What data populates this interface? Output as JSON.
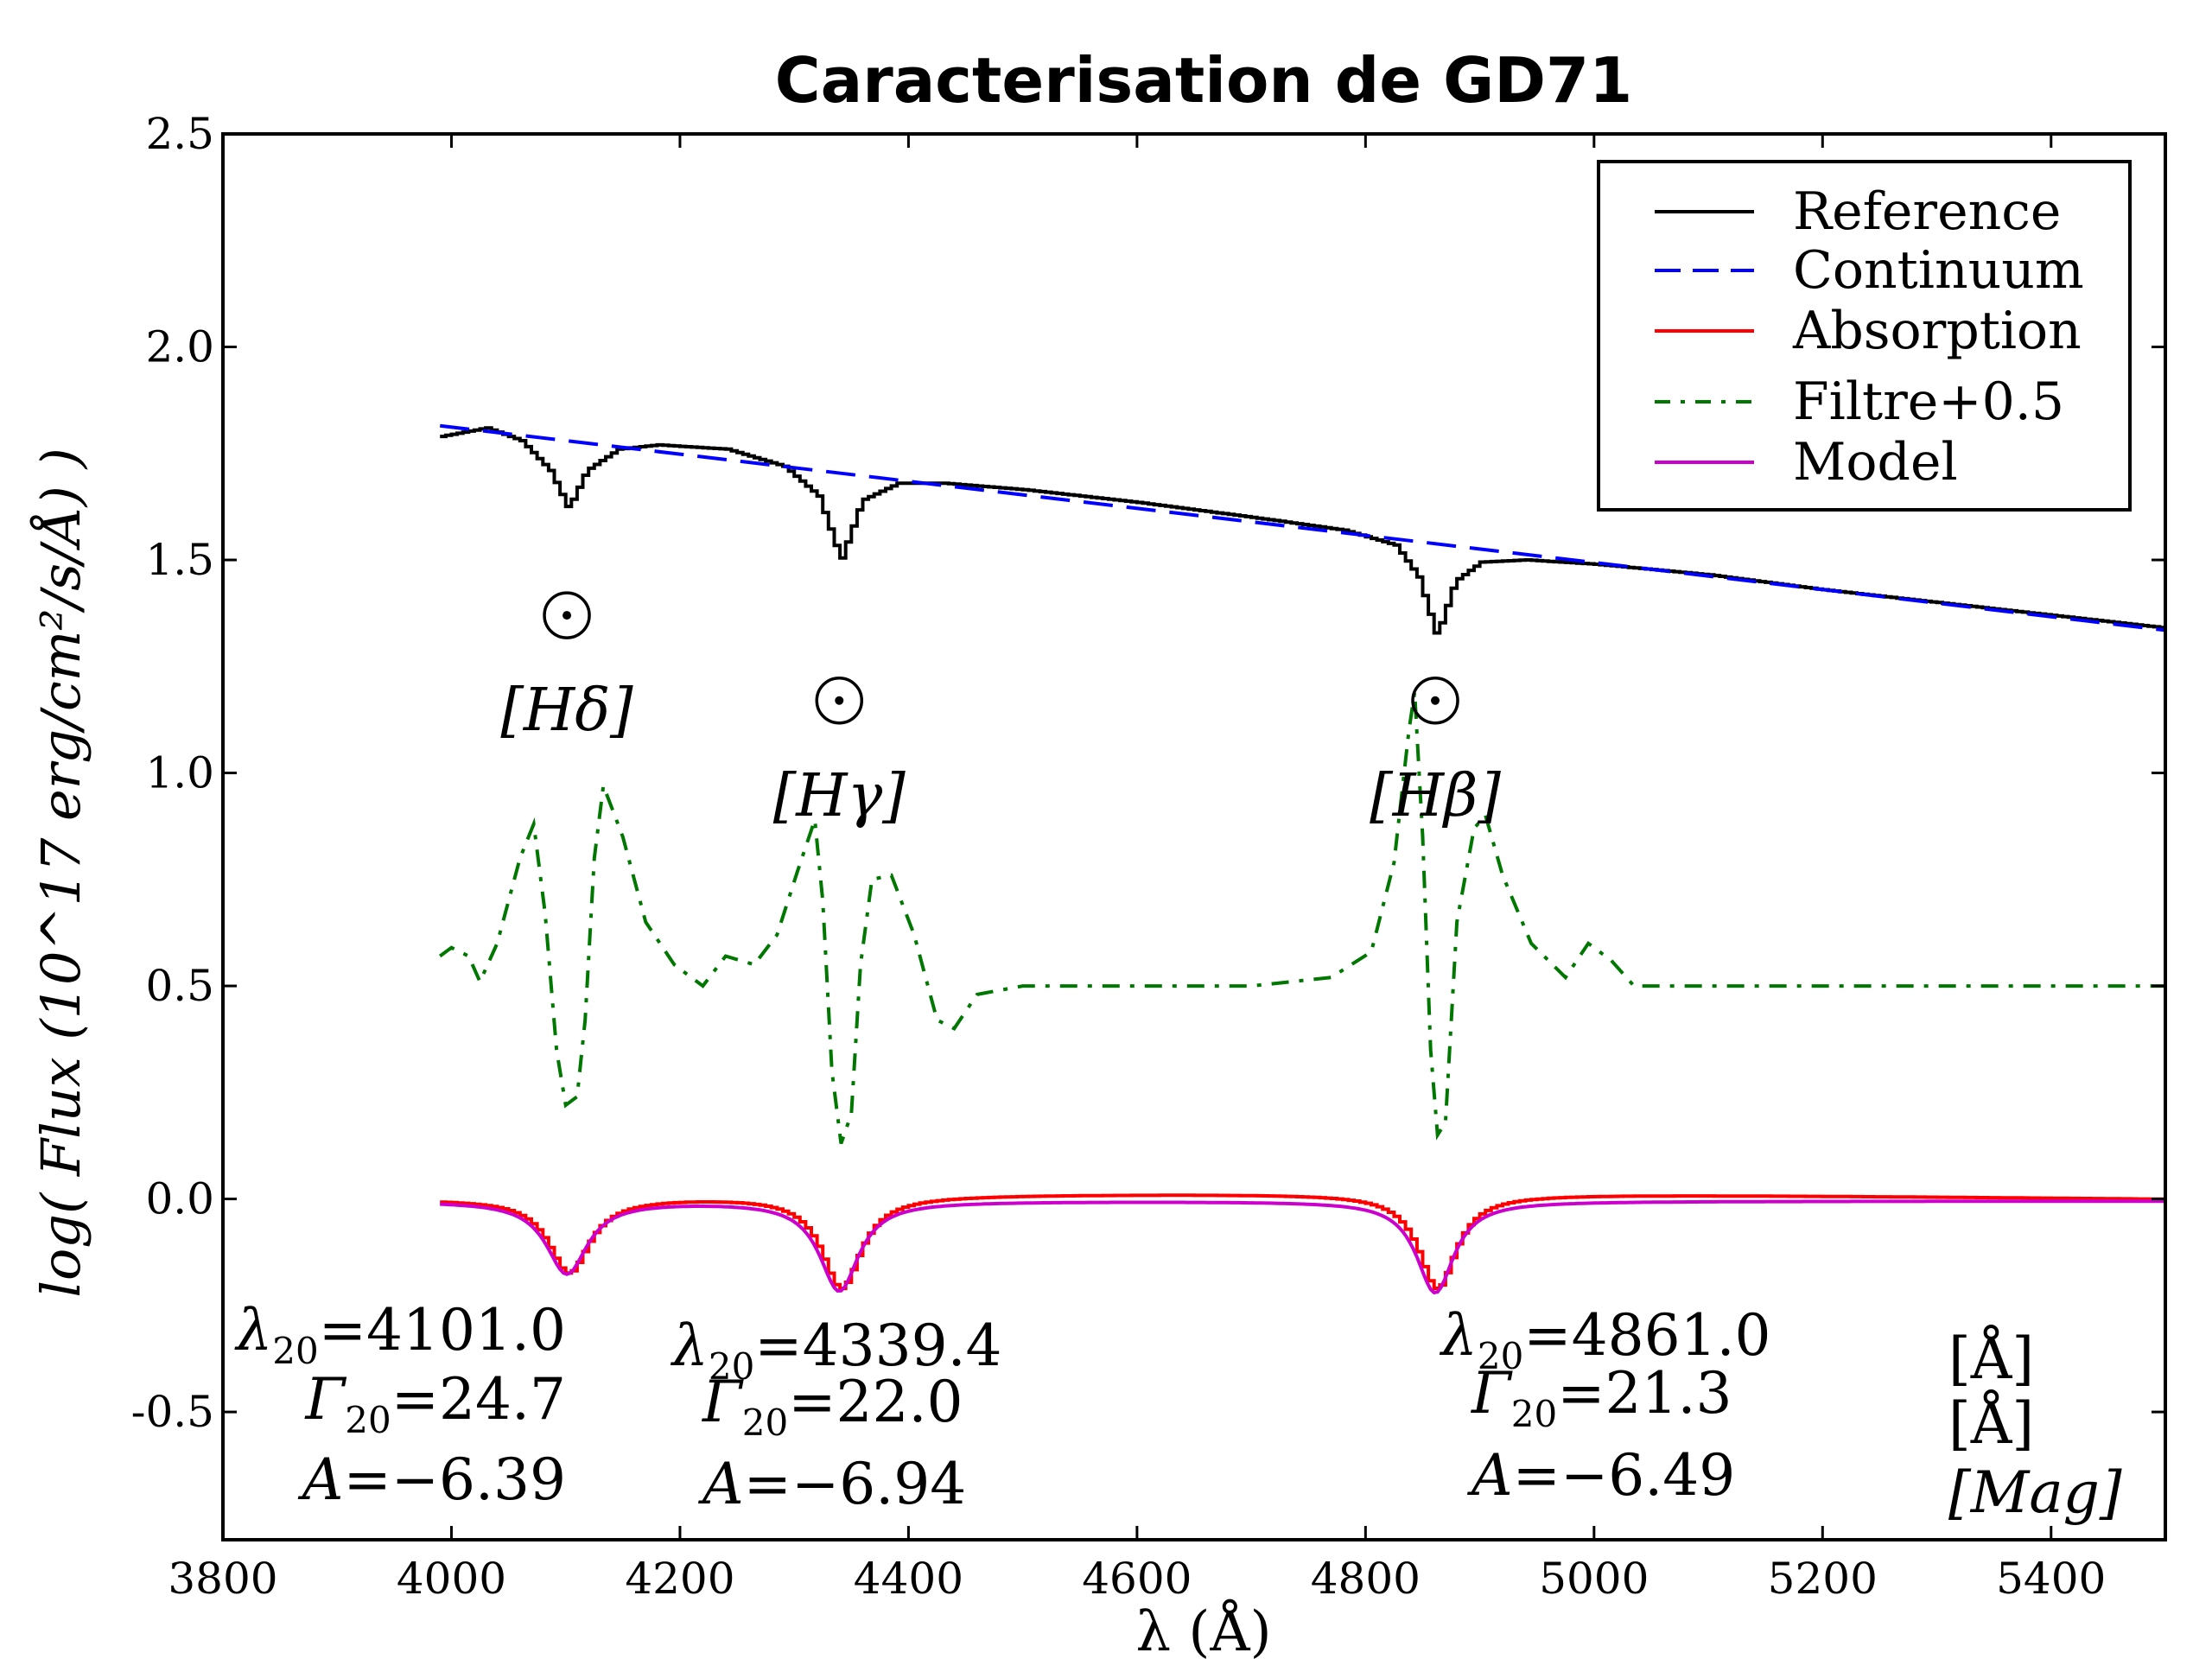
{
  "chart_data": {
    "type": "line",
    "title": "Caracterisation de GD71",
    "xlabel": "λ (Å)",
    "ylabel": "log( Flux (10^17 erg/cm²/s/Å) )",
    "xlim": [
      3800,
      5500
    ],
    "ylim": [
      -0.8,
      2.5
    ],
    "x_ticks": [
      3800,
      4000,
      4200,
      4400,
      4600,
      4800,
      5000,
      5200,
      5400
    ],
    "y_ticks": [
      -0.5,
      0.0,
      0.5,
      1.0,
      1.5,
      2.0,
      2.5
    ],
    "y_tick_labels": [
      "-0.5",
      "0.0",
      "0.5",
      "1.0",
      "1.5",
      "2.0",
      "2.5"
    ],
    "legend_position": "top-right",
    "series": [
      {
        "name": "Reference",
        "color": "#000000",
        "style": "solid-step"
      },
      {
        "name": "Continuum",
        "color": "#0000ff",
        "style": "dashed"
      },
      {
        "name": "Absorption",
        "color": "#ff0000",
        "style": "solid-step"
      },
      {
        "name": "Filtre+0.5",
        "color": "#007700",
        "style": "dash-dot"
      },
      {
        "name": "Model",
        "color": "#cc00cc",
        "style": "solid"
      }
    ],
    "continuum": {
      "x": [
        3990,
        5500
      ],
      "y": [
        1.815,
        1.335
      ]
    },
    "reference_points": [
      [
        3990,
        1.79
      ],
      [
        4010,
        1.8
      ],
      [
        4030,
        1.81
      ],
      [
        4060,
        1.78
      ],
      [
        4085,
        1.71
      ],
      [
        4101,
        1.62
      ],
      [
        4117,
        1.71
      ],
      [
        4145,
        1.76
      ],
      [
        4180,
        1.77
      ],
      [
        4240,
        1.76
      ],
      [
        4290,
        1.72
      ],
      [
        4320,
        1.65
      ],
      [
        4339.4,
        1.5
      ],
      [
        4358,
        1.64
      ],
      [
        4390,
        1.68
      ],
      [
        4430,
        1.68
      ],
      [
        4500,
        1.665
      ],
      [
        4600,
        1.635
      ],
      [
        4700,
        1.6
      ],
      [
        4780,
        1.57
      ],
      [
        4825,
        1.535
      ],
      [
        4845,
        1.46
      ],
      [
        4861,
        1.32
      ],
      [
        4877,
        1.45
      ],
      [
        4900,
        1.495
      ],
      [
        4940,
        1.5
      ],
      [
        5000,
        1.49
      ],
      [
        5100,
        1.465
      ],
      [
        5200,
        1.43
      ],
      [
        5300,
        1.4
      ],
      [
        5400,
        1.37
      ],
      [
        5500,
        1.34
      ]
    ],
    "filter_points": [
      [
        3990,
        0.57
      ],
      [
        4000,
        0.59
      ],
      [
        4015,
        0.57
      ],
      [
        4025,
        0.51
      ],
      [
        4040,
        0.6
      ],
      [
        4060,
        0.8
      ],
      [
        4072,
        0.88
      ],
      [
        4082,
        0.67
      ],
      [
        4092,
        0.35
      ],
      [
        4100,
        0.22
      ],
      [
        4110,
        0.24
      ],
      [
        4117,
        0.42
      ],
      [
        4125,
        0.8
      ],
      [
        4133,
        0.97
      ],
      [
        4150,
        0.85
      ],
      [
        4170,
        0.65
      ],
      [
        4195,
        0.55
      ],
      [
        4220,
        0.5
      ],
      [
        4240,
        0.57
      ],
      [
        4265,
        0.55
      ],
      [
        4285,
        0.62
      ],
      [
        4303,
        0.77
      ],
      [
        4318,
        0.89
      ],
      [
        4325,
        0.7
      ],
      [
        4333,
        0.3
      ],
      [
        4341,
        0.13
      ],
      [
        4350,
        0.2
      ],
      [
        4358,
        0.55
      ],
      [
        4368,
        0.75
      ],
      [
        4385,
        0.76
      ],
      [
        4405,
        0.62
      ],
      [
        4425,
        0.42
      ],
      [
        4440,
        0.4
      ],
      [
        4460,
        0.48
      ],
      [
        4500,
        0.5
      ],
      [
        4600,
        0.5
      ],
      [
        4700,
        0.5
      ],
      [
        4770,
        0.52
      ],
      [
        4805,
        0.58
      ],
      [
        4825,
        0.79
      ],
      [
        4838,
        1.1
      ],
      [
        4843,
        1.19
      ],
      [
        4850,
        0.85
      ],
      [
        4857,
        0.35
      ],
      [
        4863,
        0.15
      ],
      [
        4870,
        0.18
      ],
      [
        4880,
        0.65
      ],
      [
        4895,
        0.87
      ],
      [
        4905,
        0.9
      ],
      [
        4920,
        0.76
      ],
      [
        4945,
        0.6
      ],
      [
        4975,
        0.52
      ],
      [
        4995,
        0.6
      ],
      [
        5015,
        0.56
      ],
      [
        5035,
        0.5
      ],
      [
        5100,
        0.5
      ],
      [
        5200,
        0.5
      ],
      [
        5300,
        0.5
      ],
      [
        5400,
        0.5
      ],
      [
        5500,
        0.5
      ]
    ],
    "absorption_lines": [
      {
        "center": 4101,
        "depth": 0.17,
        "width": 22,
        "label": "[Hδ]",
        "greek": "δ"
      },
      {
        "center": 4339.4,
        "depth": 0.21,
        "width": 21,
        "label": "[Hγ]",
        "greek": "γ"
      },
      {
        "center": 4861,
        "depth": 0.215,
        "width": 20,
        "label": "[Hβ]",
        "greek": "β"
      }
    ],
    "fits": [
      {
        "lambda20": "4101.0",
        "gamma20": "24.7",
        "A": "−6.39"
      },
      {
        "lambda20": "4339.4",
        "gamma20": "22.0",
        "A": "−6.94"
      },
      {
        "lambda20": "4861.0",
        "gamma20": "21.3",
        "A": "−6.49"
      }
    ],
    "units_text": [
      "[Å]",
      "[Å]",
      "[Mag]"
    ]
  }
}
